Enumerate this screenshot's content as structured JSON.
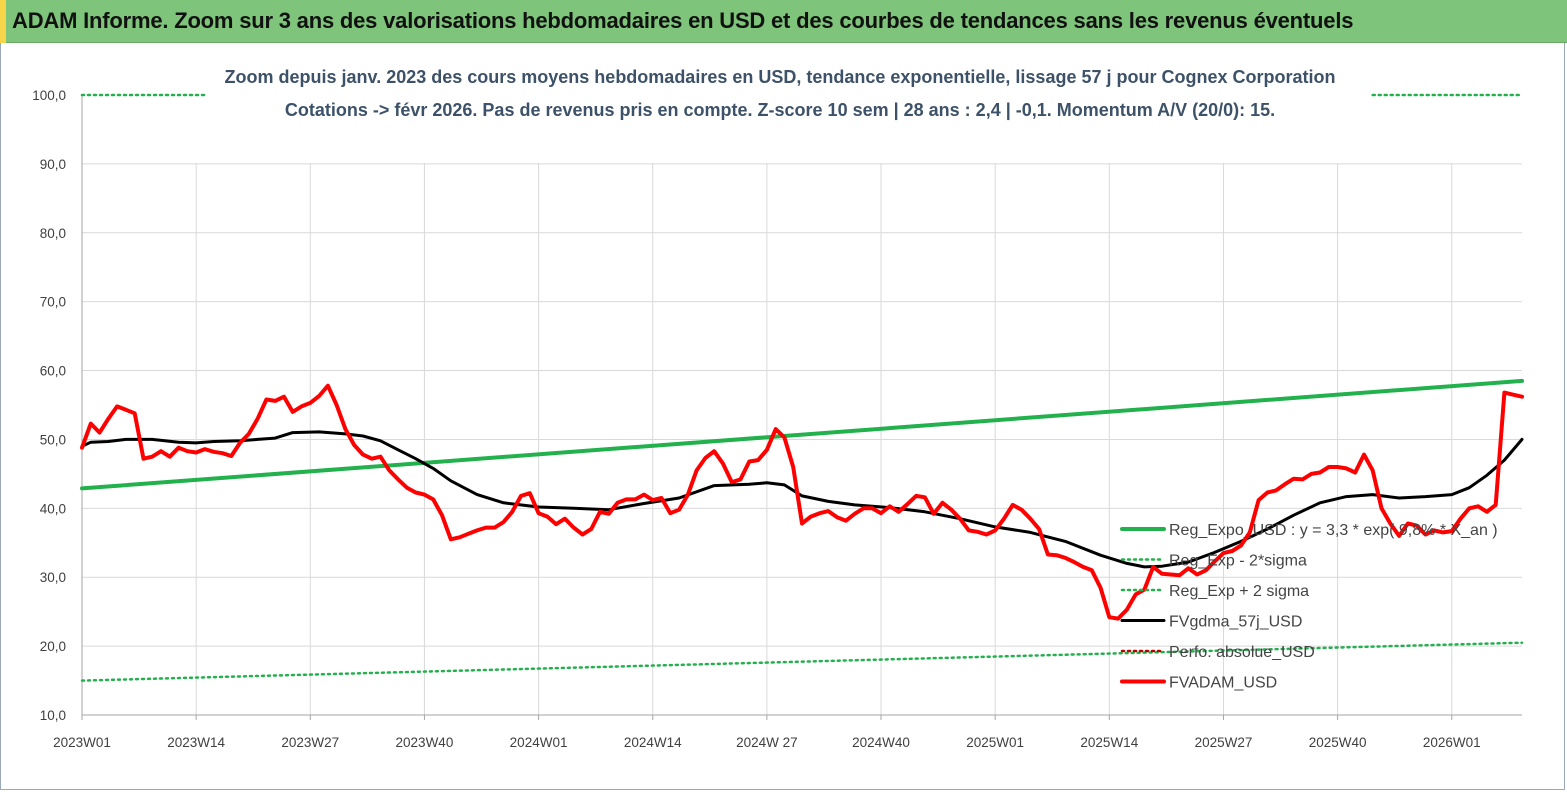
{
  "header": {
    "title": "ADAM Informe. Zoom sur 3 ans des valorisations hebdomadaires en USD et des courbes de tendances sans les revenus éventuels"
  },
  "chart_data": {
    "type": "line",
    "subtitle_line1": "Zoom depuis janv. 2023 des cours moyens hebdomadaires en USD, tendance exponentielle, lissage 57 j pour Cognex Corporation",
    "subtitle_line2": "Cotations -> févr 2026.  Pas de revenus pris en compte. Z-score 10 sem  | 28 ans : 2,4  | -0,1. Momentum A/V (20/0): 15.",
    "ylim": [
      10,
      100
    ],
    "yticks": [
      "10,0",
      "20,0",
      "30,0",
      "40,0",
      "50,0",
      "60,0",
      "70,0",
      "80,0",
      "90,0",
      "100,0"
    ],
    "x_count": 164,
    "xticks": [
      {
        "label": "2023W01",
        "index": 0
      },
      {
        "label": "2023W14",
        "index": 13
      },
      {
        "label": "2023W27",
        "index": 26
      },
      {
        "label": "2023W40",
        "index": 39
      },
      {
        "label": "2024W01",
        "index": 52
      },
      {
        "label": "2024W14",
        "index": 65
      },
      {
        "label": "2024W 27",
        "index": 78
      },
      {
        "label": "2024W40",
        "index": 91
      },
      {
        "label": "2025W01",
        "index": 104
      },
      {
        "label": "2025W14",
        "index": 117
      },
      {
        "label": "2025W27",
        "index": 130
      },
      {
        "label": "2025W40",
        "index": 143
      },
      {
        "label": "2026W01",
        "index": 156
      }
    ],
    "grid": "vertical+horizontal",
    "legend_position": "right",
    "series": [
      {
        "name": "Reg_Expo_USD : y = 3,3 * exp( 9,8% * X_an )",
        "color": "#22b14c",
        "style": "solid-thick",
        "points": [
          [
            0,
            42.9
          ],
          [
            164,
            58.5
          ]
        ]
      },
      {
        "name": "Reg_Exp - 2*sigma",
        "color": "#22b14c",
        "style": "dotted",
        "points": [
          [
            0,
            15.0
          ],
          [
            164,
            20.5
          ]
        ]
      },
      {
        "name": "Reg_Exp + 2 sigma",
        "color": "#22b14c",
        "style": "dotted",
        "points": [
          [
            0,
            100.0
          ],
          [
            18,
            100.0
          ],
          [
            142,
            100.0
          ],
          [
            164,
            100.0
          ]
        ]
      },
      {
        "name": "FVgdma_57j_USD",
        "color": "#000000",
        "style": "solid",
        "points": [
          [
            0,
            49.0
          ],
          [
            1,
            49.6
          ],
          [
            3,
            49.7
          ],
          [
            5,
            50.0
          ],
          [
            8,
            50.0
          ],
          [
            11,
            49.6
          ],
          [
            13,
            49.5
          ],
          [
            15,
            49.7
          ],
          [
            18,
            49.8
          ],
          [
            20,
            50.0
          ],
          [
            22,
            50.2
          ],
          [
            24,
            51.0
          ],
          [
            27,
            51.1
          ],
          [
            30,
            50.8
          ],
          [
            32,
            50.5
          ],
          [
            34,
            49.8
          ],
          [
            36,
            48.5
          ],
          [
            38,
            47.2
          ],
          [
            40,
            45.8
          ],
          [
            42,
            44.0
          ],
          [
            45,
            42.0
          ],
          [
            48,
            40.8
          ],
          [
            52,
            40.2
          ],
          [
            56,
            40.0
          ],
          [
            60,
            39.8
          ],
          [
            64,
            40.7
          ],
          [
            68,
            41.5
          ],
          [
            72,
            43.3
          ],
          [
            76,
            43.5
          ],
          [
            78,
            43.7
          ],
          [
            80,
            43.4
          ],
          [
            82,
            41.8
          ],
          [
            85,
            41.0
          ],
          [
            88,
            40.5
          ],
          [
            92,
            40.1
          ],
          [
            96,
            39.5
          ],
          [
            100,
            38.5
          ],
          [
            104,
            37.3
          ],
          [
            108,
            36.5
          ],
          [
            112,
            35.2
          ],
          [
            116,
            33.2
          ],
          [
            119,
            32.0
          ],
          [
            121,
            31.5
          ],
          [
            123,
            31.6
          ],
          [
            126,
            32.2
          ],
          [
            129,
            33.6
          ],
          [
            132,
            35.2
          ],
          [
            135,
            37.0
          ],
          [
            138,
            39.0
          ],
          [
            141,
            40.8
          ],
          [
            144,
            41.7
          ],
          [
            147,
            42.0
          ],
          [
            150,
            41.5
          ],
          [
            153,
            41.7
          ],
          [
            156,
            42.0
          ],
          [
            158,
            43.0
          ],
          [
            160,
            44.8
          ],
          [
            162,
            47.0
          ],
          [
            164,
            50.0
          ]
        ]
      },
      {
        "name": "Perfo. absolue_USD",
        "color": "#c00000",
        "style": "dotted",
        "points": []
      },
      {
        "name": "FVADAM_USD",
        "color": "#ff0000",
        "style": "solid-thick",
        "points": [
          [
            0,
            48.8
          ],
          [
            1,
            52.3
          ],
          [
            2,
            51.0
          ],
          [
            3,
            53.0
          ],
          [
            4,
            54.8
          ],
          [
            5,
            54.3
          ],
          [
            6,
            53.8
          ],
          [
            7,
            47.2
          ],
          [
            8,
            47.5
          ],
          [
            9,
            48.3
          ],
          [
            10,
            47.5
          ],
          [
            11,
            48.8
          ],
          [
            12,
            48.3
          ],
          [
            13,
            48.1
          ],
          [
            14,
            48.6
          ],
          [
            15,
            48.2
          ],
          [
            16,
            48.0
          ],
          [
            17,
            47.6
          ],
          [
            18,
            49.5
          ],
          [
            19,
            50.8
          ],
          [
            20,
            53.0
          ],
          [
            21,
            55.8
          ],
          [
            22,
            55.6
          ],
          [
            23,
            56.2
          ],
          [
            24,
            54.0
          ],
          [
            25,
            54.8
          ],
          [
            26,
            55.3
          ],
          [
            27,
            56.3
          ],
          [
            28,
            57.8
          ],
          [
            29,
            55.0
          ],
          [
            30,
            51.5
          ],
          [
            31,
            49.2
          ],
          [
            32,
            47.8
          ],
          [
            33,
            47.2
          ],
          [
            34,
            47.5
          ],
          [
            35,
            45.5
          ],
          [
            36,
            44.2
          ],
          [
            37,
            43.0
          ],
          [
            38,
            42.3
          ],
          [
            39,
            42.0
          ],
          [
            40,
            41.3
          ],
          [
            41,
            39.0
          ],
          [
            42,
            35.5
          ],
          [
            43,
            35.8
          ],
          [
            44,
            36.3
          ],
          [
            45,
            36.8
          ],
          [
            46,
            37.2
          ],
          [
            47,
            37.2
          ],
          [
            48,
            38.0
          ],
          [
            49,
            39.5
          ],
          [
            50,
            41.8
          ],
          [
            51,
            42.2
          ],
          [
            52,
            39.3
          ],
          [
            53,
            38.8
          ],
          [
            54,
            37.7
          ],
          [
            55,
            38.5
          ],
          [
            56,
            37.2
          ],
          [
            57,
            36.2
          ],
          [
            58,
            37.0
          ],
          [
            59,
            39.5
          ],
          [
            60,
            39.2
          ],
          [
            61,
            40.8
          ],
          [
            62,
            41.3
          ],
          [
            63,
            41.3
          ],
          [
            64,
            42.0
          ],
          [
            65,
            41.2
          ],
          [
            66,
            41.5
          ],
          [
            67,
            39.3
          ],
          [
            68,
            39.8
          ],
          [
            69,
            42.0
          ],
          [
            70,
            45.5
          ],
          [
            71,
            47.3
          ],
          [
            72,
            48.3
          ],
          [
            73,
            46.5
          ],
          [
            74,
            43.8
          ],
          [
            75,
            44.2
          ],
          [
            76,
            46.8
          ],
          [
            77,
            47.0
          ],
          [
            78,
            48.5
          ],
          [
            79,
            51.5
          ],
          [
            80,
            50.3
          ],
          [
            81,
            46.0
          ],
          [
            82,
            37.8
          ],
          [
            83,
            38.8
          ],
          [
            84,
            39.3
          ],
          [
            85,
            39.6
          ],
          [
            86,
            38.7
          ],
          [
            87,
            38.2
          ],
          [
            88,
            39.2
          ],
          [
            89,
            40.0
          ],
          [
            90,
            40.0
          ],
          [
            91,
            39.3
          ],
          [
            92,
            40.3
          ],
          [
            93,
            39.5
          ],
          [
            94,
            40.6
          ],
          [
            95,
            41.8
          ],
          [
            96,
            41.6
          ],
          [
            97,
            39.2
          ],
          [
            98,
            40.8
          ],
          [
            99,
            39.8
          ],
          [
            100,
            38.5
          ],
          [
            101,
            36.8
          ],
          [
            102,
            36.6
          ],
          [
            103,
            36.2
          ],
          [
            104,
            36.8
          ],
          [
            105,
            38.5
          ],
          [
            106,
            40.5
          ],
          [
            107,
            39.8
          ],
          [
            108,
            38.5
          ],
          [
            109,
            37.0
          ],
          [
            110,
            33.3
          ],
          [
            111,
            33.2
          ],
          [
            112,
            32.8
          ],
          [
            113,
            32.2
          ],
          [
            114,
            31.5
          ],
          [
            115,
            31.0
          ],
          [
            116,
            28.5
          ],
          [
            117,
            24.2
          ],
          [
            118,
            24.0
          ],
          [
            119,
            25.3
          ],
          [
            120,
            27.5
          ],
          [
            121,
            28.2
          ],
          [
            122,
            31.5
          ],
          [
            123,
            30.5
          ],
          [
            124,
            30.4
          ],
          [
            125,
            30.3
          ],
          [
            126,
            31.3
          ],
          [
            127,
            30.4
          ],
          [
            128,
            31.0
          ],
          [
            129,
            32.3
          ],
          [
            130,
            33.5
          ],
          [
            131,
            33.8
          ],
          [
            132,
            34.6
          ],
          [
            133,
            36.5
          ],
          [
            134,
            41.2
          ],
          [
            135,
            42.3
          ],
          [
            136,
            42.6
          ],
          [
            137,
            43.5
          ],
          [
            138,
            44.3
          ],
          [
            139,
            44.2
          ],
          [
            140,
            45.0
          ],
          [
            141,
            45.2
          ],
          [
            142,
            46.0
          ],
          [
            143,
            46.0
          ],
          [
            144,
            45.8
          ],
          [
            145,
            45.2
          ],
          [
            146,
            47.8
          ],
          [
            147,
            45.5
          ],
          [
            148,
            40.0
          ],
          [
            149,
            37.8
          ],
          [
            150,
            36.0
          ],
          [
            151,
            37.8
          ],
          [
            152,
            37.5
          ],
          [
            153,
            36.2
          ],
          [
            154,
            36.8
          ],
          [
            155,
            36.5
          ],
          [
            156,
            36.7
          ],
          [
            157,
            38.5
          ],
          [
            158,
            40.0
          ],
          [
            159,
            40.3
          ],
          [
            160,
            39.5
          ],
          [
            161,
            40.5
          ],
          [
            162,
            56.8
          ],
          [
            163,
            56.5
          ],
          [
            164,
            56.2
          ]
        ]
      }
    ]
  }
}
